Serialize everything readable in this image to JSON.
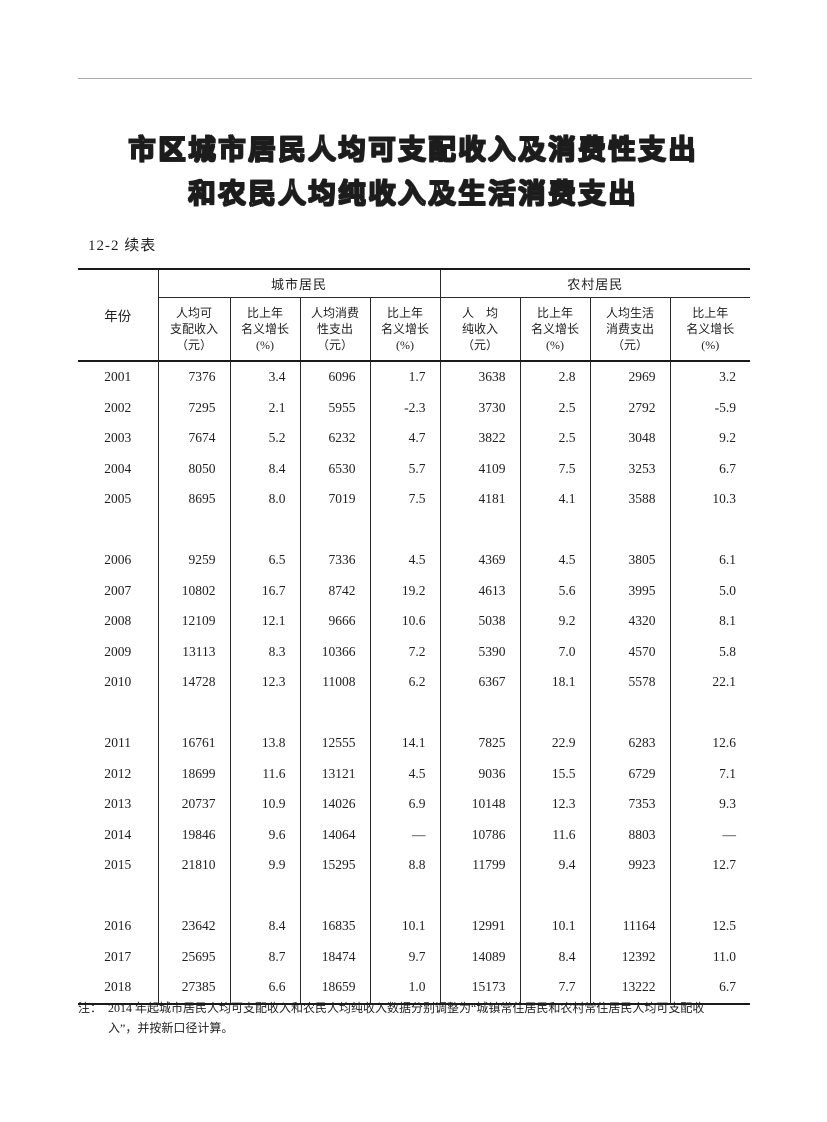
{
  "title": {
    "line1": "市区城市居民人均可支配收入及消费性支出",
    "line2": "和农民人均纯收入及生活消费支出"
  },
  "table_label": "12-2  续表",
  "table": {
    "year_header": "年份",
    "groups": [
      {
        "label": "城市居民"
      },
      {
        "label": "农村居民"
      }
    ],
    "columns": [
      {
        "lines": [
          "人均可",
          "支配收入",
          "（元）"
        ]
      },
      {
        "lines": [
          "比上年",
          "名义增长",
          "(%)"
        ]
      },
      {
        "lines": [
          "人均消费",
          "性支出",
          "（元）"
        ]
      },
      {
        "lines": [
          "比上年",
          "名义增长",
          "(%)"
        ]
      },
      {
        "lines": [
          "人　均",
          "纯收入",
          "（元）"
        ]
      },
      {
        "lines": [
          "比上年",
          "名义增长",
          "(%)"
        ]
      },
      {
        "lines": [
          "人均生活",
          "消费支出",
          "（元）"
        ]
      },
      {
        "lines": [
          "比上年",
          "名义增长",
          "(%)"
        ]
      }
    ],
    "row_groups": [
      {
        "rows": [
          [
            "2001",
            "7376",
            "3.4",
            "6096",
            "1.7",
            "3638",
            "2.8",
            "2969",
            "3.2"
          ],
          [
            "2002",
            "7295",
            "2.1",
            "5955",
            "-2.3",
            "3730",
            "2.5",
            "2792",
            "-5.9"
          ],
          [
            "2003",
            "7674",
            "5.2",
            "6232",
            "4.7",
            "3822",
            "2.5",
            "3048",
            "9.2"
          ],
          [
            "2004",
            "8050",
            "8.4",
            "6530",
            "5.7",
            "4109",
            "7.5",
            "3253",
            "6.7"
          ],
          [
            "2005",
            "8695",
            "8.0",
            "7019",
            "7.5",
            "4181",
            "4.1",
            "3588",
            "10.3"
          ]
        ]
      },
      {
        "rows": [
          [
            "2006",
            "9259",
            "6.5",
            "7336",
            "4.5",
            "4369",
            "4.5",
            "3805",
            "6.1"
          ],
          [
            "2007",
            "10802",
            "16.7",
            "8742",
            "19.2",
            "4613",
            "5.6",
            "3995",
            "5.0"
          ],
          [
            "2008",
            "12109",
            "12.1",
            "9666",
            "10.6",
            "5038",
            "9.2",
            "4320",
            "8.1"
          ],
          [
            "2009",
            "13113",
            "8.3",
            "10366",
            "7.2",
            "5390",
            "7.0",
            "4570",
            "5.8"
          ],
          [
            "2010",
            "14728",
            "12.3",
            "11008",
            "6.2",
            "6367",
            "18.1",
            "5578",
            "22.1"
          ]
        ]
      },
      {
        "rows": [
          [
            "2011",
            "16761",
            "13.8",
            "12555",
            "14.1",
            "7825",
            "22.9",
            "6283",
            "12.6"
          ],
          [
            "2012",
            "18699",
            "11.6",
            "13121",
            "4.5",
            "9036",
            "15.5",
            "6729",
            "7.1"
          ],
          [
            "2013",
            "20737",
            "10.9",
            "14026",
            "6.9",
            "10148",
            "12.3",
            "7353",
            "9.3"
          ],
          [
            "2014",
            "19846",
            "9.6",
            "14064",
            "—",
            "10786",
            "11.6",
            "8803",
            "—"
          ],
          [
            "2015",
            "21810",
            "9.9",
            "15295",
            "8.8",
            "11799",
            "9.4",
            "9923",
            "12.7"
          ]
        ]
      },
      {
        "rows": [
          [
            "2016",
            "23642",
            "8.4",
            "16835",
            "10.1",
            "12991",
            "10.1",
            "11164",
            "12.5"
          ],
          [
            "2017",
            "25695",
            "8.7",
            "18474",
            "9.7",
            "14089",
            "8.4",
            "12392",
            "11.0"
          ],
          [
            "2018",
            "27385",
            "6.6",
            "18659",
            "1.0",
            "15173",
            "7.7",
            "13222",
            "6.7"
          ]
        ]
      }
    ]
  },
  "note": {
    "label": "注：",
    "line1": "2014 年起城市居民人均可支配收入和农民人均纯收入数据分别调整为“城镇常住居民和农村常住居民人均可支配收",
    "line2": "入”，并按新口径计算。"
  }
}
